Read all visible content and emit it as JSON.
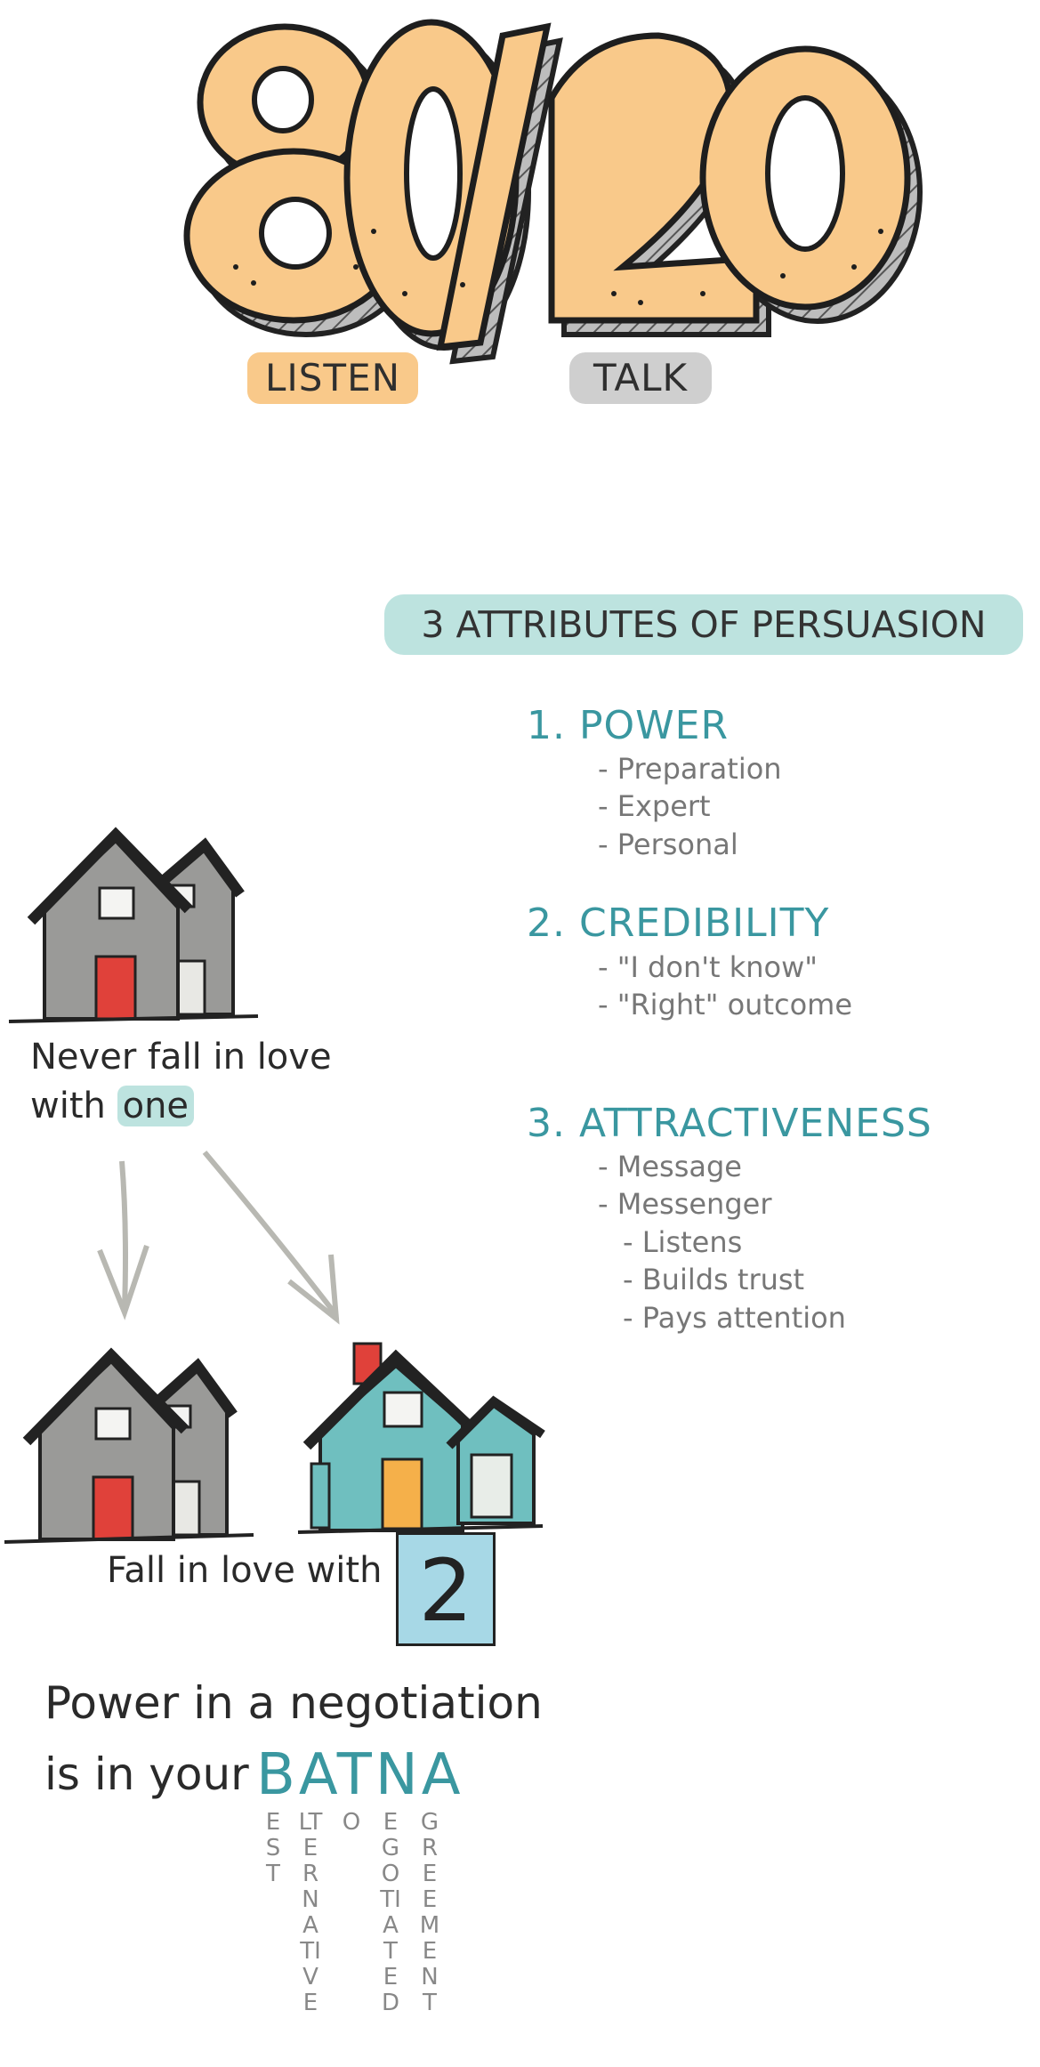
{
  "hero": {
    "ratio_text": "80/20",
    "listen_label": "LISTEN",
    "talk_label": "TALK"
  },
  "persuasion": {
    "heading": "3 ATTRIBUTES OF PERSUASION",
    "attributes": [
      {
        "title": "1. POWER",
        "items": [
          "- Preparation",
          "- Expert",
          "- Personal"
        ]
      },
      {
        "title": "2. CREDIBILITY",
        "items": [
          "- \"I don't know\"",
          "- \"Right\" outcome"
        ]
      },
      {
        "title": "3. ATTRACTIVENESS",
        "items": [
          "- Message",
          "- Messenger"
        ],
        "sub_items": [
          "- Listens",
          "- Builds trust",
          "- Pays attention"
        ]
      }
    ]
  },
  "houses": {
    "caption_line1": "Never fall in love",
    "caption_line2_prefix": "with",
    "caption_line2_highlight": "one",
    "caption_two": "Fall in love with",
    "two_number": "2"
  },
  "batna": {
    "line1": "Power in a negotiation",
    "line2_prefix": "is in your",
    "word": "BATNA",
    "columns": [
      "EST",
      "LTERNATIVE",
      "O",
      "EGOTIATED",
      "GREEMENT"
    ]
  },
  "colors": {
    "accent_teal": "#3a97a0",
    "orange": "#f9c98a",
    "light_teal": "#bde3df",
    "gray_house": "#9a9a98",
    "teal_house": "#6fbfbf",
    "red_door": "#e0413a"
  }
}
